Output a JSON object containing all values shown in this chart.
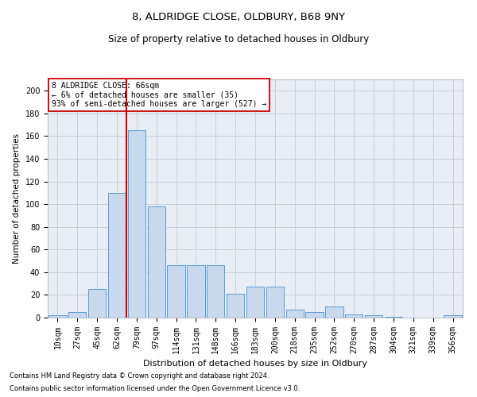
{
  "title1": "8, ALDRIDGE CLOSE, OLDBURY, B68 9NY",
  "title2": "Size of property relative to detached houses in Oldbury",
  "xlabel": "Distribution of detached houses by size in Oldbury",
  "ylabel": "Number of detached properties",
  "footnote1": "Contains HM Land Registry data © Crown copyright and database right 2024.",
  "footnote2": "Contains public sector information licensed under the Open Government Licence v3.0.",
  "annotation_line1": "8 ALDRIDGE CLOSE: 66sqm",
  "annotation_line2": "← 6% of detached houses are smaller (35)",
  "annotation_line3": "93% of semi-detached houses are larger (527) →",
  "bar_color": "#c8d9ed",
  "bar_edge_color": "#5b9bd5",
  "vline_color": "#cc0000",
  "vline_x": 3.5,
  "categories": [
    "10sqm",
    "27sqm",
    "45sqm",
    "62sqm",
    "79sqm",
    "97sqm",
    "114sqm",
    "131sqm",
    "148sqm",
    "166sqm",
    "183sqm",
    "200sqm",
    "218sqm",
    "235sqm",
    "252sqm",
    "270sqm",
    "287sqm",
    "304sqm",
    "321sqm",
    "339sqm",
    "356sqm"
  ],
  "values": [
    2,
    5,
    25,
    110,
    165,
    98,
    46,
    46,
    46,
    21,
    27,
    27,
    7,
    5,
    10,
    3,
    2,
    1,
    0,
    0,
    2
  ],
  "ylim": [
    0,
    210
  ],
  "yticks": [
    0,
    20,
    40,
    60,
    80,
    100,
    120,
    140,
    160,
    180,
    200
  ],
  "grid_color": "#c8d0de",
  "bg_color": "#e8eef5",
  "title1_fontsize": 9.5,
  "title2_fontsize": 8.5,
  "xlabel_fontsize": 8,
  "ylabel_fontsize": 7.5,
  "tick_fontsize": 7,
  "footnote_fontsize": 6,
  "annot_fontsize": 7
}
